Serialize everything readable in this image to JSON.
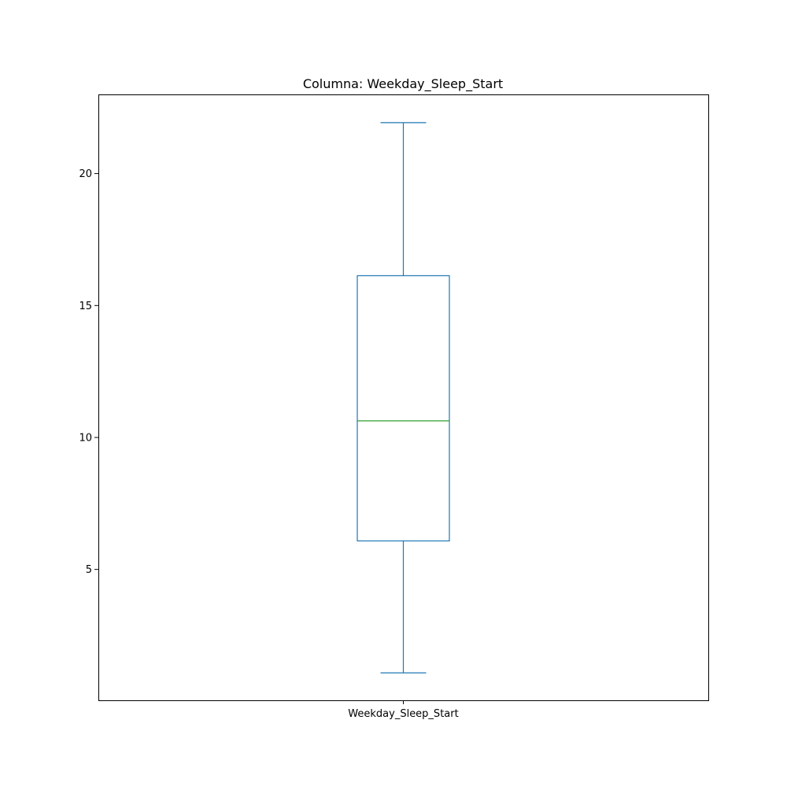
{
  "chart_data": {
    "type": "box",
    "title": "Columna: Weekday_Sleep_Start",
    "xlabel": "",
    "ylabel": "",
    "categories": [
      "Weekday_Sleep_Start"
    ],
    "boxes": [
      {
        "label": "Weekday_Sleep_Start",
        "whisker_low": 1.08,
        "q1": 6.08,
        "median": 10.63,
        "q3": 16.13,
        "whisker_high": 21.93
      }
    ],
    "ylim": [
      0.04,
      23.0
    ],
    "yticks": [
      5,
      10,
      15,
      20
    ],
    "ytick_labels": [
      "5",
      "10",
      "15",
      "20"
    ],
    "grid": false,
    "legend": false,
    "colors": {
      "box": "#1f77b4",
      "median": "#2ca02c",
      "axes": "#000000"
    }
  }
}
